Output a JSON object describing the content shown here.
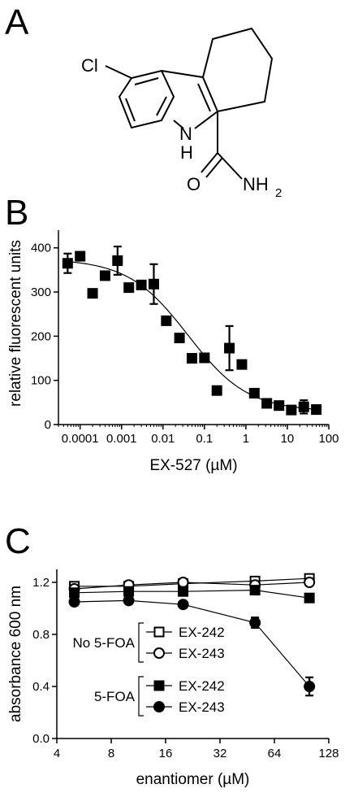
{
  "panels": {
    "A": {
      "letter": "A"
    },
    "B": {
      "letter": "B"
    },
    "C": {
      "letter": "C"
    }
  },
  "molecule": {
    "atoms": {
      "cl": "Cl",
      "n": "N",
      "h": "H",
      "o": "O",
      "nh": "NH",
      "sub2": "2"
    }
  },
  "chart_data": [
    {
      "type": "scatter",
      "panel": "B",
      "title": "",
      "xlabel": "EX-527 (µM)",
      "ylabel": "relative fluorescent units",
      "xscale": "log",
      "xlim": [
        3e-05,
        100
      ],
      "ylim": [
        0,
        440
      ],
      "xticks": [
        0.0001,
        0.001,
        0.01,
        0.1,
        1,
        10,
        100
      ],
      "xtick_labels": [
        "0.0001",
        "0.001",
        "0.01",
        "0.1",
        "1",
        "10",
        "100"
      ],
      "yticks": [
        0,
        100,
        200,
        300,
        400
      ],
      "ytick_labels": [
        "0",
        "100",
        "200",
        "300",
        "400"
      ],
      "grid": false,
      "legend": "none",
      "fit": {
        "top": 375,
        "bottom": 30,
        "ic50": 0.04,
        "hill": 0.6
      },
      "series": [
        {
          "marker": "filled-square",
          "points": [
            {
              "x": 5e-05,
              "y": 365,
              "err": 22
            },
            {
              "x": 0.0001,
              "y": 381,
              "err": 10
            },
            {
              "x": 0.0002,
              "y": 297,
              "err": 0
            },
            {
              "x": 0.0004,
              "y": 337,
              "err": 0
            },
            {
              "x": 0.0008,
              "y": 371,
              "err": 32
            },
            {
              "x": 0.0015,
              "y": 310,
              "err": 0
            },
            {
              "x": 0.003,
              "y": 316,
              "err": 0
            },
            {
              "x": 0.006,
              "y": 318,
              "err": 45
            },
            {
              "x": 0.012,
              "y": 235,
              "err": 0
            },
            {
              "x": 0.025,
              "y": 196,
              "err": 8
            },
            {
              "x": 0.05,
              "y": 150,
              "err": 0
            },
            {
              "x": 0.1,
              "y": 151,
              "err": 0
            },
            {
              "x": 0.2,
              "y": 77,
              "err": 6
            },
            {
              "x": 0.4,
              "y": 173,
              "err": 50
            },
            {
              "x": 0.8,
              "y": 136,
              "err": 0
            },
            {
              "x": 1.6,
              "y": 71,
              "err": 0
            },
            {
              "x": 3.2,
              "y": 48,
              "err": 0
            },
            {
              "x": 6.3,
              "y": 43,
              "err": 0
            },
            {
              "x": 12.5,
              "y": 33,
              "err": 0
            },
            {
              "x": 25,
              "y": 40,
              "err": 15
            },
            {
              "x": 50,
              "y": 34,
              "err": 10
            }
          ]
        }
      ]
    },
    {
      "type": "line",
      "panel": "C",
      "title": "",
      "xlabel": "enantiomer (µM)",
      "ylabel": "absorbance 600 nm",
      "xscale": "log2",
      "xlim": [
        4,
        128
      ],
      "ylim": [
        0,
        1.3
      ],
      "xticks": [
        4,
        8,
        16,
        32,
        64,
        128
      ],
      "xtick_labels": [
        "4",
        "8",
        "16",
        "32",
        "64",
        "128"
      ],
      "yticks": [
        0,
        0.4,
        0.8,
        1.2
      ],
      "ytick_labels": [
        "0.0",
        "0.4",
        "0.8",
        "1.2"
      ],
      "grid": false,
      "legend": "center-right",
      "legend_groups": [
        {
          "label": "No 5-FOA",
          "series": [
            0,
            1
          ]
        },
        {
          "label": "5-FOA",
          "series": [
            2,
            3
          ]
        }
      ],
      "series": [
        {
          "name": "EX-242",
          "marker": "open-square",
          "x": [
            5,
            10,
            20,
            50,
            100
          ],
          "y": [
            1.17,
            1.17,
            1.19,
            1.21,
            1.23
          ],
          "err": [
            0,
            0,
            0,
            0,
            0
          ]
        },
        {
          "name": "EX-243",
          "marker": "open-circle",
          "x": [
            5,
            10,
            20,
            50,
            100
          ],
          "y": [
            1.15,
            1.18,
            1.2,
            1.18,
            1.2
          ],
          "err": [
            0,
            0,
            0,
            0,
            0
          ]
        },
        {
          "name": "EX-242",
          "marker": "filled-square",
          "x": [
            5,
            10,
            20,
            50,
            100
          ],
          "y": [
            1.12,
            1.13,
            1.13,
            1.14,
            1.08
          ],
          "err": [
            0,
            0,
            0,
            0,
            0
          ]
        },
        {
          "name": "EX-243",
          "marker": "filled-circle",
          "x": [
            5,
            10,
            20,
            50,
            100
          ],
          "y": [
            1.05,
            1.06,
            1.03,
            0.89,
            0.4
          ],
          "err": [
            0,
            0,
            0,
            0.04,
            0.07
          ]
        }
      ]
    }
  ]
}
